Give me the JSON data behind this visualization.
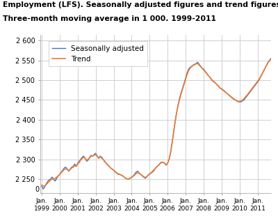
{
  "title_line1": "Employment (LFS). Seasonally adjusted figures and trend figures.",
  "title_line2": "Three-month moving average in 1 000. 1999-2011",
  "ytick_vals": [
    2250,
    2300,
    2350,
    2400,
    2450,
    2500,
    2550,
    2600
  ],
  "ytick_labels": [
    "2 250",
    "2 300",
    "2 350",
    "2 400",
    "2 450",
    "2 500",
    "2 550",
    "2 600"
  ],
  "ylim": [
    2215,
    2615
  ],
  "xlim_start": 1998.92,
  "xlim_end": 2011.75,
  "xtick_years": [
    1999,
    2000,
    2001,
    2002,
    2003,
    2004,
    2005,
    2006,
    2007,
    2008,
    2009,
    2010,
    2011
  ],
  "sa_color": "#4472c4",
  "trend_color": "#ed7d31",
  "sa_label": "Seasonally adjusted",
  "trend_label": "Trend",
  "background_color": "#ffffff",
  "grid_color": "#c8c8c8",
  "title_fontsize": 7.8,
  "legend_fontsize": 7.5,
  "tick_fontsize": 7.0,
  "sa_data": [
    2232,
    2225,
    2230,
    2238,
    2244,
    2248,
    2250,
    2255,
    2248,
    2245,
    2252,
    2258,
    2262,
    2268,
    2272,
    2278,
    2280,
    2275,
    2270,
    2275,
    2280,
    2282,
    2288,
    2282,
    2290,
    2295,
    2300,
    2305,
    2308,
    2302,
    2295,
    2298,
    2305,
    2310,
    2308,
    2312,
    2315,
    2308,
    2302,
    2308,
    2305,
    2300,
    2295,
    2290,
    2285,
    2282,
    2278,
    2275,
    2272,
    2268,
    2265,
    2262,
    2262,
    2260,
    2258,
    2255,
    2252,
    2250,
    2250,
    2252,
    2255,
    2258,
    2262,
    2268,
    2270,
    2265,
    2262,
    2258,
    2255,
    2252,
    2255,
    2260,
    2262,
    2265,
    2268,
    2272,
    2278,
    2282,
    2285,
    2290,
    2293,
    2292,
    2290,
    2285,
    2290,
    2300,
    2318,
    2342,
    2368,
    2395,
    2418,
    2438,
    2455,
    2468,
    2480,
    2492,
    2505,
    2518,
    2528,
    2532,
    2535,
    2538,
    2540,
    2542,
    2545,
    2540,
    2535,
    2530,
    2528,
    2522,
    2518,
    2512,
    2508,
    2502,
    2498,
    2495,
    2492,
    2488,
    2485,
    2480,
    2478,
    2475,
    2472,
    2468,
    2465,
    2462,
    2458,
    2455,
    2452,
    2450,
    2448,
    2445,
    2445,
    2445,
    2448,
    2450,
    2455,
    2460,
    2465,
    2470,
    2475,
    2480,
    2485,
    2490,
    2495,
    2500,
    2508,
    2515,
    2522,
    2530,
    2538,
    2545,
    2550,
    2555,
    2558,
    2562,
    2558,
    2562,
    2565,
    2568
  ],
  "trend_data": [
    2235,
    2232,
    2233,
    2236,
    2240,
    2244,
    2248,
    2250,
    2250,
    2252,
    2255,
    2258,
    2262,
    2266,
    2270,
    2274,
    2276,
    2274,
    2272,
    2274,
    2278,
    2280,
    2284,
    2282,
    2288,
    2292,
    2298,
    2302,
    2305,
    2302,
    2298,
    2300,
    2304,
    2308,
    2308,
    2310,
    2312,
    2308,
    2304,
    2306,
    2303,
    2299,
    2294,
    2290,
    2286,
    2282,
    2278,
    2275,
    2272,
    2269,
    2266,
    2263,
    2262,
    2260,
    2258,
    2255,
    2252,
    2250,
    2250,
    2252,
    2254,
    2257,
    2260,
    2264,
    2266,
    2264,
    2262,
    2259,
    2256,
    2254,
    2256,
    2260,
    2263,
    2266,
    2270,
    2274,
    2278,
    2282,
    2285,
    2289,
    2292,
    2292,
    2290,
    2286,
    2290,
    2300,
    2318,
    2342,
    2368,
    2395,
    2418,
    2436,
    2452,
    2465,
    2478,
    2490,
    2502,
    2514,
    2524,
    2530,
    2534,
    2537,
    2539,
    2541,
    2542,
    2538,
    2534,
    2530,
    2526,
    2521,
    2517,
    2512,
    2508,
    2503,
    2499,
    2496,
    2492,
    2488,
    2484,
    2480,
    2477,
    2474,
    2471,
    2468,
    2465,
    2462,
    2459,
    2456,
    2453,
    2450,
    2448,
    2446,
    2446,
    2447,
    2450,
    2453,
    2458,
    2462,
    2467,
    2472,
    2477,
    2482,
    2487,
    2492,
    2497,
    2502,
    2509,
    2516,
    2523,
    2530,
    2537,
    2544,
    2549,
    2553,
    2556,
    2560,
    2556,
    2559,
    2562,
    2565
  ]
}
